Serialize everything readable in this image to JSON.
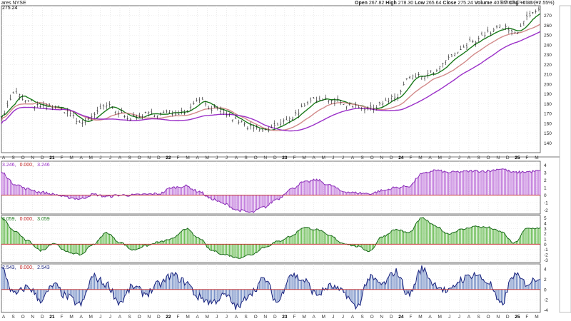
{
  "header": {
    "left": "ares NYSE",
    "stats": [
      {
        "label": "Open",
        "value": "267.82"
      },
      {
        "label": "High",
        "value": "278.30"
      },
      {
        "label": "Low",
        "value": "265.64"
      },
      {
        "label": "Close",
        "value": "275.24"
      },
      {
        "label": "Volume",
        "value": "40.8M"
      },
      {
        "label": "Chg",
        "value": "+6.86 (+2.55%)"
      }
    ],
    "logo": "© StockCharts.com"
  },
  "chart_data": [
    {
      "type": "ohlc",
      "title": "",
      "last_price_label": "275.24",
      "ylim": [
        130,
        280
      ],
      "yticks": [
        140,
        150,
        160,
        170,
        180,
        190,
        200,
        210,
        220,
        230,
        240,
        250,
        260,
        270
      ],
      "xticks": [
        "A",
        "S",
        "O",
        "N",
        "D",
        "21",
        "F",
        "M",
        "A",
        "M",
        "J",
        "J",
        "A",
        "S",
        "O",
        "N",
        "D",
        "22",
        "F",
        "M",
        "A",
        "M",
        "J",
        "J",
        "A",
        "S",
        "O",
        "N",
        "D",
        "23",
        "F",
        "M",
        "A",
        "M",
        "J",
        "J",
        "A",
        "S",
        "O",
        "N",
        "D",
        "24",
        "F",
        "M",
        "A",
        "M",
        "J",
        "J",
        "A",
        "S",
        "O",
        "N",
        "D",
        "25",
        "F",
        "M"
      ],
      "close_anchors": [
        168,
        190,
        182,
        176,
        177,
        172,
        160,
        168,
        178,
        170,
        165,
        169,
        170,
        171,
        172,
        185,
        175,
        170,
        162,
        155,
        152,
        158,
        166,
        176,
        186,
        185,
        180,
        178,
        174,
        181,
        186,
        206,
        208,
        212,
        225,
        235,
        245,
        252,
        258,
        252,
        268,
        275
      ],
      "moving_averages": [
        {
          "color": "#1a7a1a",
          "period": "short"
        },
        {
          "color": "#d28a8a",
          "period": "medium"
        },
        {
          "color": "#9b30c8",
          "period": "long"
        }
      ]
    },
    {
      "type": "histogram",
      "readout": [
        {
          "text": "3.246",
          "color": "#9b30c8"
        },
        {
          "text": "0.000",
          "color": "#c02020"
        },
        {
          "text": "3.246",
          "color": "#9b30c8"
        }
      ],
      "fill": "#c27bdc",
      "line": "#8a2db8",
      "ylim": [
        -2.5,
        4.5
      ],
      "yticks": [
        -2,
        -1,
        0,
        1,
        2,
        3,
        4
      ],
      "anchors": [
        3.0,
        1.5,
        0.8,
        0.4,
        0.1,
        -0.3,
        -0.5,
        0.1,
        -0.2,
        0.0,
        0.0,
        0.1,
        0.2,
        1.0,
        1.2,
        0.5,
        -0.5,
        -1.2,
        -2.0,
        -2.3,
        -1.6,
        -0.5,
        0.8,
        1.7,
        2.0,
        1.3,
        0.5,
        0.3,
        0.2,
        0.6,
        1.0,
        1.2,
        2.8,
        3.3,
        3.0,
        3.1,
        3.2,
        3.2,
        3.5,
        3.0,
        3.1,
        3.2
      ]
    },
    {
      "type": "histogram",
      "readout": [
        {
          "text": "3.059",
          "color": "#1a7a1a"
        },
        {
          "text": "0.000",
          "color": "#c02020"
        },
        {
          "text": "3.059",
          "color": "#1a7a1a"
        }
      ],
      "fill": "#6fbf5a",
      "line": "#1a6a1a",
      "ylim": [
        -3.5,
        5.5
      ],
      "yticks": [
        -3,
        -2,
        -1,
        0,
        1,
        2,
        3,
        4,
        5
      ],
      "anchors": [
        5.0,
        2.5,
        0.6,
        -1.2,
        0.2,
        -1.5,
        -2.0,
        0.0,
        2.2,
        0.4,
        -1.1,
        -0.3,
        0.4,
        1.0,
        3.0,
        1.2,
        -1.2,
        -2.0,
        -2.6,
        -2.0,
        -0.6,
        0.5,
        1.5,
        3.2,
        2.8,
        1.6,
        0.2,
        -0.4,
        -1.3,
        1.5,
        2.8,
        2.2,
        5.0,
        3.5,
        2.0,
        2.8,
        3.4,
        3.2,
        2.4,
        0.2,
        3.0,
        3.1
      ]
    },
    {
      "type": "histogram",
      "readout": [
        {
          "text": "2.543",
          "color": "#1a237e"
        },
        {
          "text": "0.000",
          "color": "#c02020"
        },
        {
          "text": "2.543",
          "color": "#1a237e"
        }
      ],
      "fill": "#7b93c8",
      "line": "#1a237e",
      "ylim": [
        -4.5,
        5
      ],
      "yticks": [
        -4,
        -2,
        0,
        2,
        4
      ],
      "anchors": [
        4.0,
        -1.0,
        0.5,
        -2.0,
        0.8,
        -1.5,
        -3.0,
        2.5,
        1.0,
        -2.5,
        0.5,
        -0.8,
        1.0,
        2.8,
        1.5,
        -1.5,
        -2.5,
        -1.2,
        -3.5,
        -0.5,
        2.0,
        -2.5,
        3.0,
        1.8,
        -1.0,
        0.6,
        -0.5,
        -3.5,
        2.2,
        1.0,
        3.5,
        -1.0,
        4.0,
        1.0,
        -0.5,
        2.0,
        3.0,
        1.5,
        -3.0,
        2.8,
        1.2,
        2.5
      ]
    }
  ]
}
